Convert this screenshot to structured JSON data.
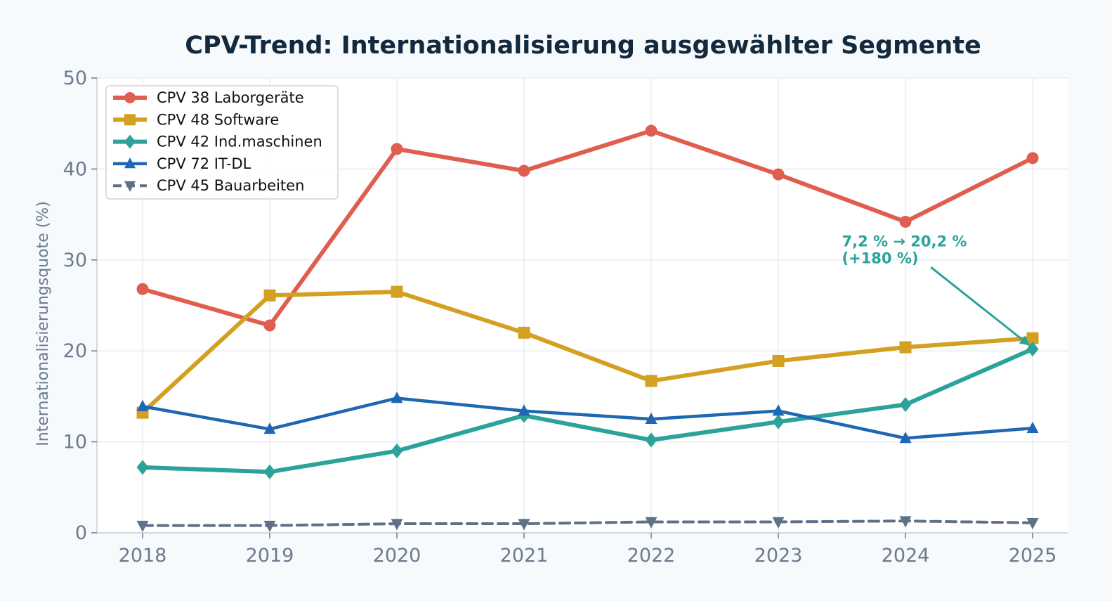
{
  "chart_data": {
    "type": "line",
    "title": "CPV-Trend: Internationalisierung ausgewählter Segmente",
    "xlabel": "",
    "ylabel": "Internationalisierungsquote (%)",
    "x": [
      2018,
      2019,
      2020,
      2021,
      2022,
      2023,
      2024,
      2025
    ],
    "x_tick_labels": [
      "2018",
      "2019",
      "2020",
      "2021",
      "2022",
      "2023",
      "2024",
      "2025"
    ],
    "ylim": [
      0,
      50
    ],
    "y_ticks": [
      0,
      10,
      20,
      30,
      40,
      50
    ],
    "y_tick_labels": [
      "0",
      "10",
      "20",
      "30",
      "40",
      "50"
    ],
    "grid": true,
    "legend_position": "top-left",
    "series": [
      {
        "name": "CPV 38 Laborgeräte",
        "color": "#e05e50",
        "marker": "circle",
        "dash": false,
        "width": 6,
        "values": [
          26.8,
          22.8,
          42.2,
          39.8,
          44.2,
          39.4,
          34.2,
          41.2
        ]
      },
      {
        "name": "CPV 48 Software",
        "color": "#d4a021",
        "marker": "square",
        "dash": false,
        "width": 6,
        "values": [
          13.2,
          26.1,
          26.5,
          22.0,
          16.7,
          18.9,
          20.4,
          21.4
        ]
      },
      {
        "name": "CPV 42 Ind.maschinen",
        "color": "#2ba39a",
        "marker": "diamond",
        "dash": false,
        "width": 6,
        "values": [
          7.2,
          6.7,
          9.0,
          12.9,
          10.2,
          12.2,
          14.1,
          20.2
        ]
      },
      {
        "name": "CPV 72 IT-DL",
        "color": "#1e67b2",
        "marker": "triangle-up",
        "dash": false,
        "width": 4.5,
        "values": [
          13.9,
          11.4,
          14.8,
          13.4,
          12.5,
          13.4,
          10.4,
          11.5
        ]
      },
      {
        "name": "CPV 45 Bauarbeiten",
        "color": "#607089",
        "marker": "triangle-down",
        "dash": true,
        "width": 4,
        "values": [
          0.8,
          0.8,
          1.0,
          1.0,
          1.2,
          1.2,
          1.3,
          1.1
        ]
      }
    ],
    "annotation": {
      "lines": [
        "7,2 % → 20,2 %",
        "(+180 %)"
      ],
      "color": "#2ba39a",
      "text_x": 2023.5,
      "text_y": 31.5,
      "arrow_from_x": 2024.2,
      "arrow_from_y": 29.2,
      "target_x": 2025,
      "target_y": 20.2
    }
  }
}
